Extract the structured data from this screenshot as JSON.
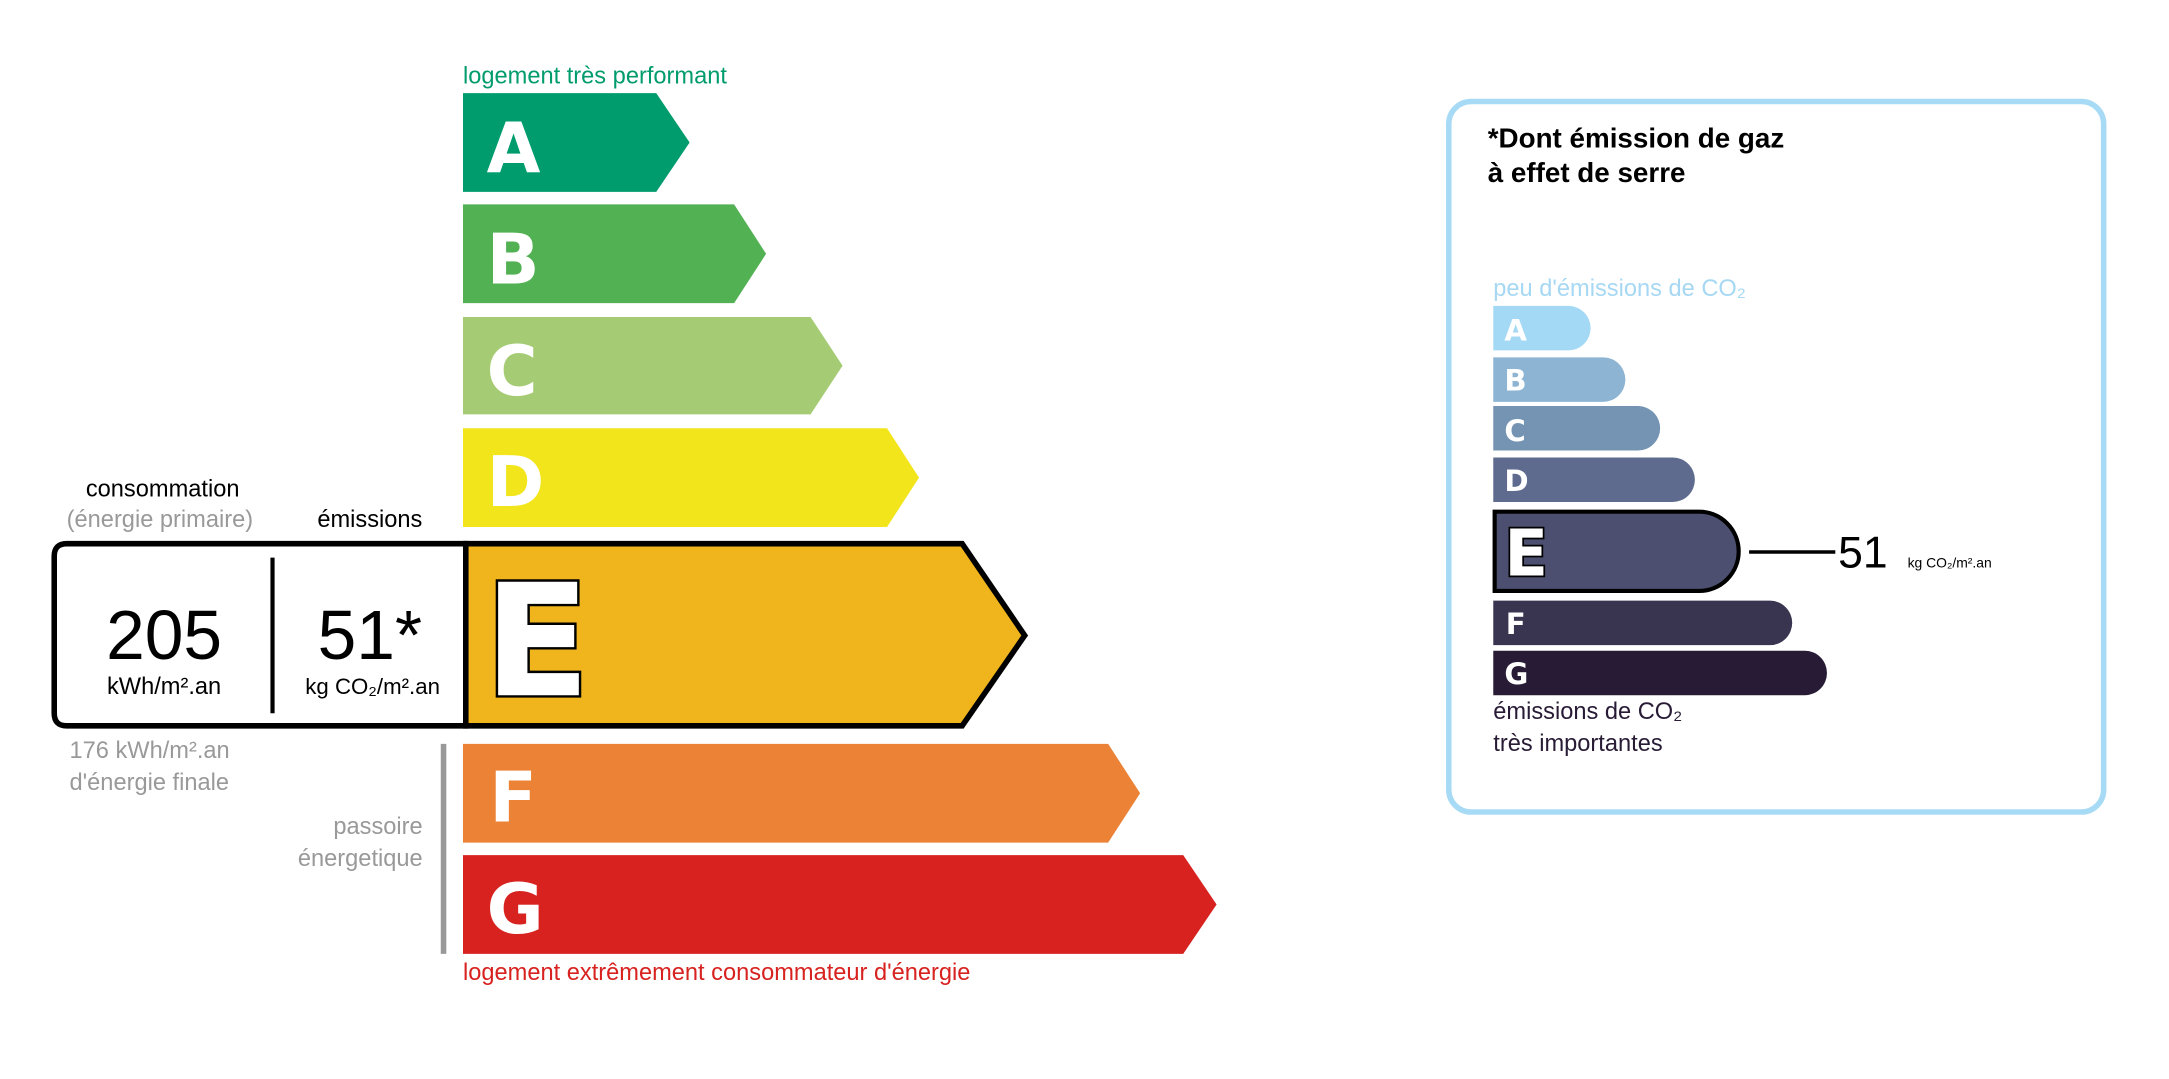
{
  "energy_label": {
    "top_caption": "logement très performant",
    "bottom_caption": "logement extrêmement consommateur d'énergie",
    "classes": [
      {
        "letter": "A",
        "color": "#009c6d"
      },
      {
        "letter": "B",
        "color": "#52b153"
      },
      {
        "letter": "C",
        "color": "#a5cc74"
      },
      {
        "letter": "D",
        "color": "#f2e51c"
      },
      {
        "letter": "E",
        "color": "#f0b41c"
      },
      {
        "letter": "F",
        "color": "#eb8235"
      },
      {
        "letter": "G",
        "color": "#d7221f"
      }
    ],
    "current_class": "E",
    "consumption_heading": "consommation",
    "consumption_subheading": "(énergie primaire)",
    "emissions_heading": "émissions",
    "consumption_value": "205",
    "consumption_unit": "kWh/m².an",
    "emissions_value": "51*",
    "emissions_unit": "kg CO₂/m².an",
    "final_energy_value": "176 kWh/m².an",
    "final_energy_label": "d'énergie finale",
    "passoire_line1": "passoire",
    "passoire_line2": "énergetique"
  },
  "ghg_panel": {
    "title_line1": "*Dont émission de gaz",
    "title_line2": "à effet de serre",
    "top_caption": "peu d'émissions de CO₂",
    "bottom_caption_line1": "émissions de CO₂",
    "bottom_caption_line2": "très importantes",
    "classes": [
      {
        "letter": "A",
        "color": "#a4d9f5"
      },
      {
        "letter": "B",
        "color": "#8db4d3"
      },
      {
        "letter": "C",
        "color": "#7593b2"
      },
      {
        "letter": "D",
        "color": "#5e6b8f"
      },
      {
        "letter": "E",
        "color": "#4c4f6f"
      },
      {
        "letter": "F",
        "color": "#393551"
      },
      {
        "letter": "G",
        "color": "#281b35"
      }
    ],
    "current_class": "E",
    "value": "51",
    "unit": "kg CO₂/m².an",
    "border_color": "#a7dbf5"
  }
}
